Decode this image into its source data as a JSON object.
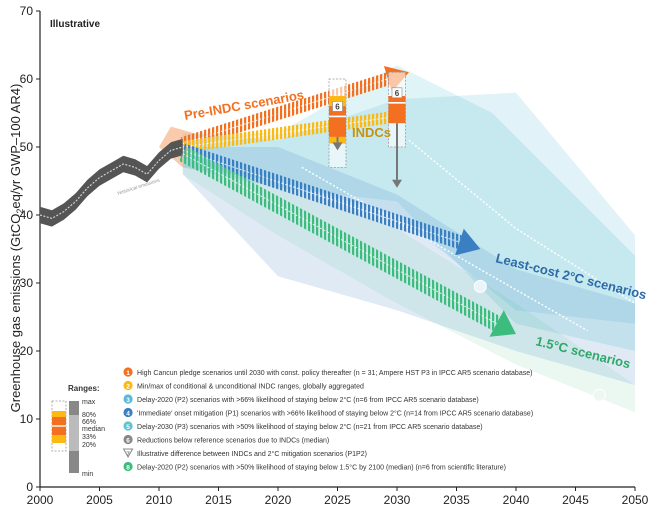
{
  "chart_data": {
    "type": "line",
    "title": "Illustrative",
    "ylabel": "Greenhouse gas emissions (GtCO2eq/yr GWP-100 AR4)",
    "ylabel_parts": [
      "Greenhouse gas emissions (GtCO",
      "2",
      "eq/yr GWP–100 AR4)"
    ],
    "xlabel": "",
    "xlim": [
      2000,
      2050
    ],
    "ylim": [
      0,
      70
    ],
    "x_ticks": [
      2000,
      2005,
      2010,
      2015,
      2020,
      2025,
      2030,
      2035,
      2040,
      2045,
      2050
    ],
    "y_ticks": [
      0,
      10,
      20,
      30,
      40,
      50,
      60,
      70
    ],
    "grid": false,
    "historical": {
      "name": "Historical emissions",
      "x": [
        2000,
        2001,
        2002,
        2003,
        2004,
        2005,
        2006,
        2007,
        2008,
        2009,
        2010,
        2011,
        2012
      ],
      "y": [
        40,
        39.5,
        40.5,
        42,
        44,
        45.5,
        46.5,
        47.5,
        47,
        46,
        48,
        49.5,
        50
      ]
    },
    "series": [
      {
        "name": "Pre-INDC scenarios",
        "id": 1,
        "color": "#f37021",
        "x": [
          2012,
          2031
        ],
        "y": [
          50.5,
          61
        ]
      },
      {
        "name": "INDCs",
        "id": 2,
        "color": "#fdb913",
        "x": [
          2012,
          2030
        ],
        "y": [
          50,
          54.5
        ]
      },
      {
        "name": "Least-cost 2°C scenarios",
        "id": 4,
        "color": "#3a7fc1",
        "x": [
          2012,
          2037
        ],
        "y": [
          49.5,
          35
        ]
      },
      {
        "name": "1.5°C scenarios",
        "id": 8,
        "color": "#3dbd7d",
        "x": [
          2012,
          2040
        ],
        "y": [
          49,
          22.5
        ]
      }
    ],
    "ranges": [
      {
        "year": 2025,
        "min": 47,
        "p20": 50.5,
        "p33": 51.5,
        "median": 54.5,
        "p66": 56,
        "p80": 57.5,
        "max": 60,
        "reduction_marker": "6",
        "difference_to": 49.5
      },
      {
        "year": 2030,
        "min": 50,
        "p20": 52,
        "p33": 53.5,
        "median": 56.5,
        "p66": 57.5,
        "max": 61,
        "reduction_marker": "6",
        "difference_to": 44
      }
    ],
    "legend_box": {
      "title": "Ranges:",
      "labels": [
        "max",
        "80%",
        "66%",
        "median",
        "33%",
        "20%",
        "min"
      ]
    },
    "annotations": [
      {
        "id": "1",
        "color": "#f37021",
        "text": "High Cancun pledge scenarios until 2030 with const. policy thereafter (n = 31; Ampere HST P3 in IPCC AR5 scenario database)"
      },
      {
        "id": "2",
        "color": "#fdb913",
        "text": "Min/max of conditional & unconditional INDC ranges, globally aggregated"
      },
      {
        "id": "3",
        "color": "#5bb8d6",
        "text": "Delay-2020 (P2) scenarios with >66% likelihood of staying below 2°C (n=6 from IPCC AR5 scenario database)"
      },
      {
        "id": "4",
        "color": "#3a7fc1",
        "text": "'Immediate' onset mitigation (P1) scenarios with >66% likelihood of staying below 2°C (n=14 from IPCC AR5 scenario database)"
      },
      {
        "id": "5",
        "color": "#5cc6d0",
        "text": "Delay-2030 (P3) scenarios with >50% likelihood of staying below 2°C (n=21 from IPCC AR5 scenario database)"
      },
      {
        "id": "6",
        "color": "#888888",
        "text": "Reductions below reference scenarios due to INDCs (median)"
      },
      {
        "id": "7",
        "color": "#888888",
        "text": "Illustrative difference between INDCs and 2°C mitigation scenarios (P1P2)"
      },
      {
        "id": "8",
        "color": "#3dbd7d",
        "text": "Delay-2020 (P2) scenarios with >50% likelihood of staying below 1.5°C by 2100 (median) (n=6 from scientific literature)"
      }
    ],
    "colors": {
      "pre_indc": "#f37021",
      "indc": "#fdb913",
      "least_cost": "#3a7fc1",
      "one_five": "#3dbd7d",
      "delay2020": "#5bb8d6",
      "delay2030": "#5cc6d0",
      "historical": "#555555",
      "axis": "#222222"
    }
  }
}
